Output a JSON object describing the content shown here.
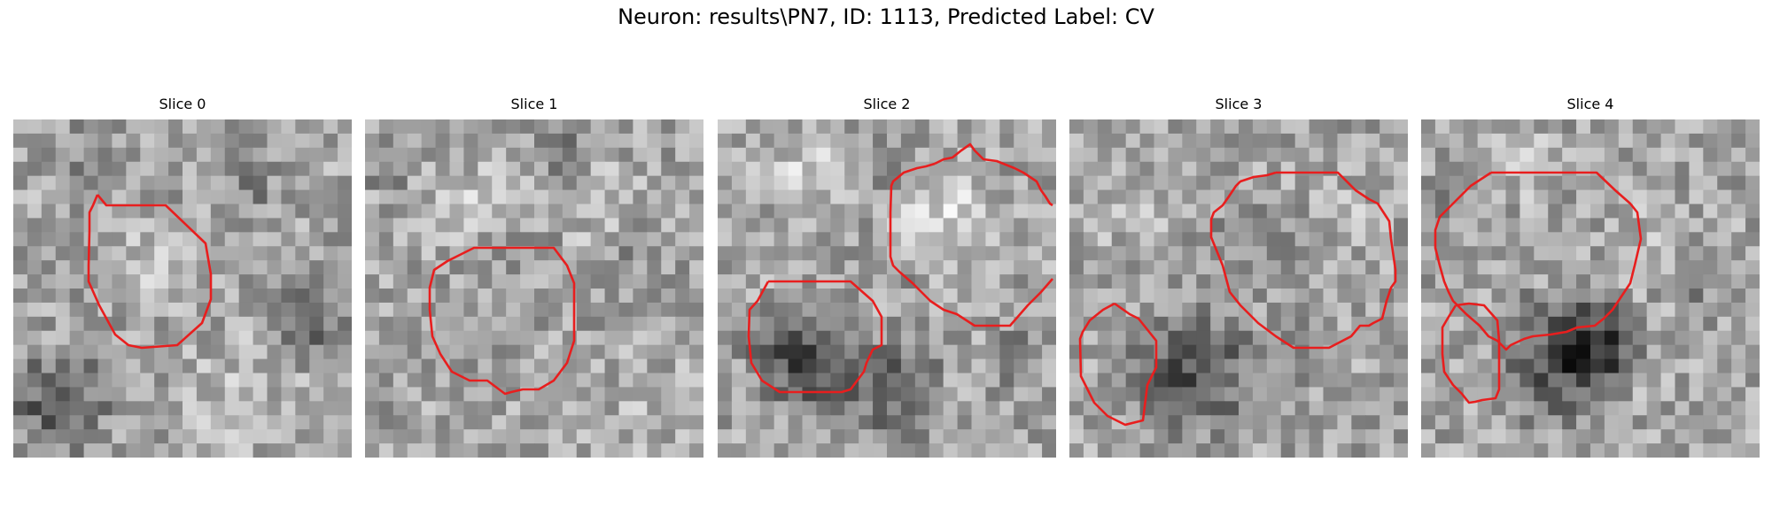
{
  "figure": {
    "title": "Neuron: results\\PN7, ID: 1113, Predicted Label: CV"
  },
  "colors": {
    "contour": "#e81e1e",
    "background": "#ffffff"
  },
  "slices": [
    {
      "label": "Slice 0",
      "contours": [
        [
          [
            110,
            220
          ],
          [
            120,
            232
          ],
          [
            187,
            232
          ],
          [
            232,
            275
          ],
          [
            238,
            310
          ],
          [
            238,
            338
          ],
          [
            228,
            365
          ],
          [
            200,
            390
          ],
          [
            160,
            393
          ],
          [
            145,
            390
          ],
          [
            130,
            378
          ],
          [
            112,
            345
          ],
          [
            100,
            318
          ],
          [
            100,
            300
          ],
          [
            101,
            260
          ],
          [
            101,
            240
          ],
          [
            105,
            232
          ],
          [
            110,
            220
          ]
        ]
      ]
    },
    {
      "label": "Slice 1",
      "contours": [
        [
          [
            580,
            280
          ],
          [
            625,
            280
          ],
          [
            640,
            300
          ],
          [
            648,
            320
          ],
          [
            648,
            385
          ],
          [
            640,
            410
          ],
          [
            625,
            430
          ],
          [
            608,
            440
          ],
          [
            590,
            440
          ],
          [
            577,
            443
          ],
          [
            570,
            445
          ],
          [
            550,
            430
          ],
          [
            530,
            430
          ],
          [
            510,
            420
          ],
          [
            497,
            400
          ],
          [
            488,
            380
          ],
          [
            485,
            350
          ],
          [
            485,
            325
          ],
          [
            490,
            305
          ],
          [
            505,
            295
          ],
          [
            515,
            290
          ],
          [
            535,
            280
          ],
          [
            580,
            280
          ]
        ]
      ]
    },
    {
      "label": "Slice 2",
      "contours": [
        [
          [
            1055,
            185
          ],
          [
            1065,
            180
          ],
          [
            1075,
            178
          ],
          [
            1085,
            170
          ],
          [
            1095,
            163
          ],
          [
            1100,
            170
          ],
          [
            1110,
            180
          ],
          [
            1125,
            182
          ],
          [
            1145,
            190
          ],
          [
            1155,
            195
          ],
          [
            1170,
            205
          ],
          [
            1175,
            215
          ],
          [
            1180,
            222
          ],
          [
            1185,
            230
          ],
          [
            1188,
            232
          ]
        ],
        [
          [
            1188,
            315
          ],
          [
            1175,
            330
          ],
          [
            1160,
            345
          ],
          [
            1140,
            368
          ],
          [
            1100,
            368
          ],
          [
            1080,
            355
          ],
          [
            1065,
            350
          ],
          [
            1050,
            340
          ],
          [
            1030,
            320
          ],
          [
            1015,
            307
          ],
          [
            1008,
            300
          ],
          [
            1005,
            290
          ],
          [
            1005,
            250
          ],
          [
            1005,
            240
          ],
          [
            1006,
            210
          ],
          [
            1008,
            205
          ],
          [
            1020,
            195
          ],
          [
            1035,
            190
          ],
          [
            1045,
            188
          ],
          [
            1055,
            185
          ]
        ],
        [
          [
            867,
            318
          ],
          [
            960,
            318
          ],
          [
            985,
            340
          ],
          [
            995,
            358
          ],
          [
            995,
            390
          ],
          [
            985,
            395
          ],
          [
            978,
            410
          ],
          [
            975,
            420
          ],
          [
            960,
            440
          ],
          [
            950,
            443
          ],
          [
            880,
            443
          ],
          [
            860,
            430
          ],
          [
            848,
            410
          ],
          [
            845,
            380
          ],
          [
            846,
            350
          ],
          [
            855,
            340
          ],
          [
            867,
            318
          ]
        ]
      ]
    },
    {
      "label": "Slice 3",
      "contours": [
        [
          [
            1440,
            195
          ],
          [
            1510,
            195
          ],
          [
            1530,
            215
          ],
          [
            1545,
            225
          ],
          [
            1555,
            230
          ],
          [
            1568,
            250
          ],
          [
            1570,
            270
          ],
          [
            1575,
            305
          ],
          [
            1575,
            318
          ],
          [
            1570,
            325
          ],
          [
            1565,
            340
          ],
          [
            1560,
            360
          ],
          [
            1550,
            365
          ],
          [
            1545,
            368
          ],
          [
            1535,
            368
          ],
          [
            1525,
            380
          ],
          [
            1500,
            393
          ],
          [
            1460,
            393
          ],
          [
            1440,
            380
          ],
          [
            1420,
            365
          ],
          [
            1400,
            345
          ],
          [
            1388,
            330
          ],
          [
            1380,
            300
          ],
          [
            1367,
            268
          ],
          [
            1367,
            248
          ],
          [
            1370,
            240
          ],
          [
            1380,
            232
          ],
          [
            1387,
            222
          ],
          [
            1395,
            210
          ],
          [
            1400,
            205
          ],
          [
            1415,
            200
          ],
          [
            1430,
            198
          ],
          [
            1440,
            195
          ]
        ],
        [
          [
            1258,
            343
          ],
          [
            1275,
            355
          ],
          [
            1285,
            360
          ],
          [
            1297,
            375
          ],
          [
            1305,
            385
          ],
          [
            1305,
            415
          ],
          [
            1295,
            435
          ],
          [
            1290,
            475
          ],
          [
            1270,
            480
          ],
          [
            1250,
            470
          ],
          [
            1235,
            455
          ],
          [
            1220,
            425
          ],
          [
            1219,
            383
          ],
          [
            1222,
            375
          ],
          [
            1230,
            362
          ],
          [
            1245,
            350
          ],
          [
            1258,
            343
          ]
        ]
      ]
    },
    {
      "label": "Slice 4",
      "contours": [
        [
          [
            1683,
            195
          ],
          [
            1802,
            195
          ],
          [
            1823,
            215
          ],
          [
            1840,
            230
          ],
          [
            1848,
            240
          ],
          [
            1850,
            255
          ],
          [
            1852,
            270
          ],
          [
            1845,
            300
          ],
          [
            1840,
            320
          ],
          [
            1830,
            335
          ],
          [
            1820,
            350
          ],
          [
            1810,
            360
          ],
          [
            1800,
            368
          ],
          [
            1780,
            370
          ],
          [
            1768,
            375
          ],
          [
            1750,
            378
          ],
          [
            1730,
            380
          ],
          [
            1720,
            383
          ],
          [
            1705,
            390
          ],
          [
            1700,
            395
          ],
          [
            1690,
            385
          ],
          [
            1680,
            380
          ],
          [
            1670,
            368
          ],
          [
            1655,
            355
          ],
          [
            1640,
            340
          ],
          [
            1635,
            330
          ],
          [
            1630,
            318
          ],
          [
            1625,
            300
          ],
          [
            1620,
            280
          ],
          [
            1620,
            260
          ],
          [
            1625,
            245
          ],
          [
            1635,
            235
          ],
          [
            1645,
            225
          ],
          [
            1660,
            210
          ],
          [
            1683,
            195
          ]
        ],
        [
          [
            1643,
            345
          ],
          [
            1658,
            343
          ],
          [
            1675,
            345
          ],
          [
            1690,
            362
          ],
          [
            1692,
            385
          ],
          [
            1692,
            440
          ],
          [
            1688,
            450
          ],
          [
            1673,
            452
          ],
          [
            1665,
            454
          ],
          [
            1658,
            455
          ],
          [
            1650,
            445
          ],
          [
            1640,
            435
          ],
          [
            1630,
            420
          ],
          [
            1628,
            400
          ],
          [
            1628,
            370
          ],
          [
            1635,
            358
          ],
          [
            1643,
            345
          ]
        ]
      ]
    }
  ]
}
